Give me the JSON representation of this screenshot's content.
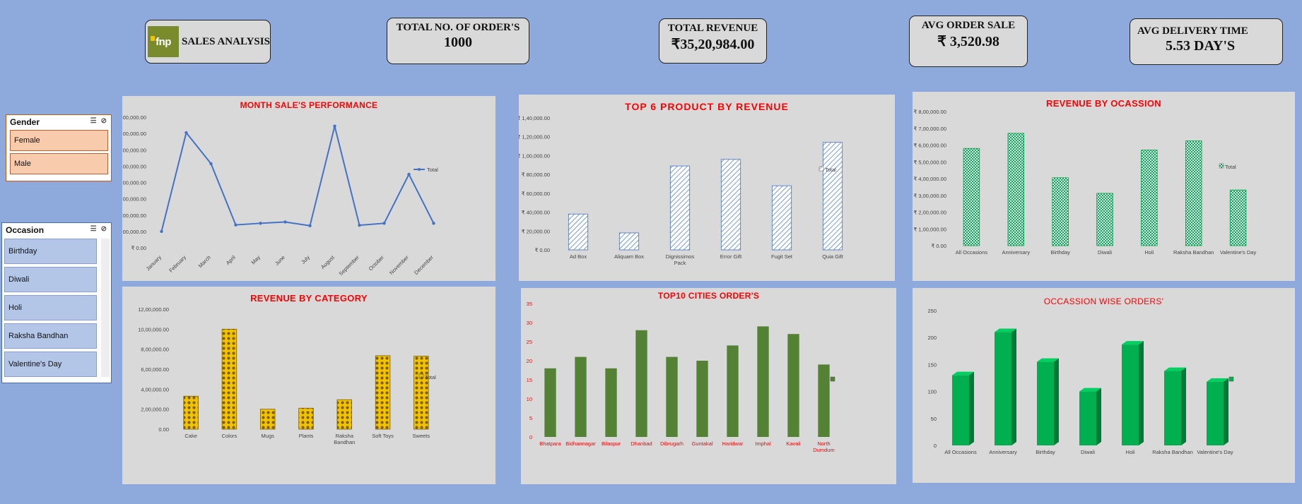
{
  "logo": {
    "brand": "fnp",
    "title": "SALES ANALYSIS"
  },
  "kpis": {
    "orders": {
      "label": "TOTAL NO. OF ORDER'S",
      "value": "1000"
    },
    "revenue": {
      "label": "TOTAL REVENUE",
      "value": "₹35,20,984.00"
    },
    "avg_order": {
      "label": "AVG ORDER SALE",
      "value": "₹ 3,520.98"
    },
    "delivery": {
      "label": "AVG DELIVERY TIME",
      "value": "5.53 DAY'S"
    }
  },
  "slicers": {
    "gender": {
      "title": "Gender",
      "items": [
        "Female",
        "Male"
      ]
    },
    "occasion": {
      "title": "Occasion",
      "items": [
        "Birthday",
        "Diwali",
        "Holi",
        "Raksha Bandhan",
        "Valentine's Day"
      ]
    }
  },
  "colors": {
    "background": "#8eaadc",
    "panel": "#d9d9d9",
    "chart_title": "#ff0000",
    "line": "#4472c4",
    "dark_green": "#548235",
    "bright_green": "#00b050"
  },
  "chart_data": [
    {
      "id": "month",
      "type": "line",
      "title": "MONTH SALE'S PERFORMANCE",
      "categories": [
        "January",
        "February",
        "March",
        "April",
        "May",
        "June",
        "July",
        "August",
        "September",
        "October",
        "November",
        "December"
      ],
      "series": [
        {
          "name": "Total",
          "values": [
            100000,
            705000,
            515000,
            140000,
            150000,
            158000,
            135000,
            745000,
            138000,
            150000,
            450000,
            150000
          ]
        }
      ],
      "yticks": [
        "₹ 0.00",
        "₹ 1,00,000.00",
        "₹ 2,00,000.00",
        "₹ 3,00,000.00",
        "₹ 4,00,000.00",
        "₹ 5,00,000.00",
        "₹ 6,00,000.00",
        "₹ 7,00,000.00",
        "₹ 8,00,000.00"
      ],
      "ylim": [
        0,
        800000
      ],
      "legend": "right"
    },
    {
      "id": "product",
      "type": "bar",
      "title": "TOP 6 PRODUCT BY REVENUE",
      "categories": [
        "Ad Box",
        "Aliquam Box",
        "Dignissimos Pack",
        "Error Gift",
        "Fugit Set",
        "Quia Gift"
      ],
      "series": [
        {
          "name": "Total",
          "values": [
            38000,
            18000,
            89000,
            96000,
            68000,
            114000
          ]
        }
      ],
      "yticks": [
        "₹ 0.00",
        "₹ 20,000.00",
        "₹ 40,000.00",
        "₹ 60,000.00",
        "₹ 80,000.00",
        "₹ 1,00,000.00",
        "₹ 1,20,000.00",
        "₹ 1,40,000.00"
      ],
      "ylim": [
        0,
        140000
      ],
      "legend": "right"
    },
    {
      "id": "occasion_rev",
      "type": "bar",
      "title": "REVENUE BY OCASSION",
      "categories": [
        "All Occasions",
        "Anniversary",
        "Birthday",
        "Diwali",
        "Holi",
        "Raksha Bandhan",
        "Valentine's Day"
      ],
      "series": [
        {
          "name": "Total",
          "values": [
            580000,
            670000,
            405000,
            312000,
            570000,
            625000,
            332000
          ]
        }
      ],
      "yticks": [
        "₹ 0.00",
        "₹ 1,00,000.00",
        "₹ 2,00,000.00",
        "₹ 3,00,000.00",
        "₹ 4,00,000.00",
        "₹ 5,00,000.00",
        "₹ 6,00,000.00",
        "₹ 7,00,000.00",
        "₹ 8,00,000.00"
      ],
      "ylim": [
        0,
        800000
      ],
      "legend": "right"
    },
    {
      "id": "category",
      "type": "bar",
      "title": "REVENUE BY CATEGORY",
      "categories": [
        "Cake",
        "Colors",
        "Mugs",
        "Plants",
        "Raksha Bandhan",
        "Soft Toys",
        "Sweets"
      ],
      "series": [
        {
          "name": "Total",
          "values": [
            330000,
            1000000,
            200000,
            210000,
            295000,
            735000,
            730000
          ]
        }
      ],
      "yticks": [
        "0.00",
        "2,00,000.00",
        "4,00,000.00",
        "6,00,000.00",
        "8,00,000.00",
        "10,00,000.00",
        "12,00,000.00"
      ],
      "ylim": [
        0,
        1200000
      ],
      "legend": "right"
    },
    {
      "id": "cities",
      "type": "bar",
      "title": "TOP10 CITIES ORDER'S",
      "categories": [
        "Bhatpara",
        "Bidhannagar",
        "Bilaspur",
        "Dhanbad",
        "Dibrugarh",
        "Guntakal",
        "Haridwar",
        "Imphal",
        "Kavali",
        "North Dumdum"
      ],
      "series": [
        {
          "values": [
            18,
            21,
            18,
            28,
            21,
            20,
            24,
            29,
            27,
            19
          ]
        }
      ],
      "yticks": [
        "0",
        "5",
        "10",
        "15",
        "20",
        "25",
        "30",
        "35"
      ],
      "ylim": [
        0,
        35
      ],
      "legend": "right"
    },
    {
      "id": "occasion_orders",
      "type": "bar",
      "title": "OCCASSION WISE ORDERS'",
      "categories": [
        "All Occasions",
        "Anniversary",
        "Birthday",
        "Diwali",
        "Holi",
        "Raksha Bandhan",
        "Valentine's Day"
      ],
      "series": [
        {
          "values": [
            130,
            210,
            155,
            100,
            187,
            138,
            118
          ]
        }
      ],
      "yticks": [
        "0",
        "50",
        "100",
        "150",
        "200",
        "250"
      ],
      "ylim": [
        0,
        250
      ],
      "legend": "right"
    }
  ]
}
